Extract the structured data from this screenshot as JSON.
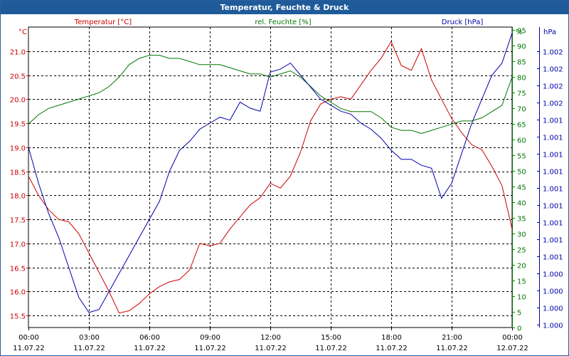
{
  "window": {
    "title": "Temperatur, Feuchte & Druck"
  },
  "colors": {
    "temperature": "#cc0000",
    "humidity": "#007700",
    "pressure": "#0000aa",
    "titlebar": "#1f5b99"
  },
  "chart_data": {
    "type": "line",
    "title": "Temperatur, Feuchte & Druck",
    "grid": true,
    "x_range": [
      0,
      24
    ],
    "x_ticks": [
      {
        "time": "00:00",
        "date": "11.07.22"
      },
      {
        "time": "03:00",
        "date": "11.07.22"
      },
      {
        "time": "06:00",
        "date": "11.07.22"
      },
      {
        "time": "09:00",
        "date": "11.07.22"
      },
      {
        "time": "12:00",
        "date": "11.07.22"
      },
      {
        "time": "15:00",
        "date": "11.07.22"
      },
      {
        "time": "18:00",
        "date": "11.07.22"
      },
      {
        "time": "21:00",
        "date": "11.07.22"
      },
      {
        "time": "00:00",
        "date": "12.07.22"
      }
    ],
    "axes": {
      "temperature": {
        "unit": "°C",
        "ylim": [
          15.25,
          21.5
        ],
        "ticks": [
          "15.5",
          "16.0",
          "16.5",
          "17.0",
          "17.5",
          "18.0",
          "18.5",
          "19.0",
          "19.5",
          "20.0",
          "20.5",
          "21.0"
        ]
      },
      "humidity": {
        "unit": "%",
        "ylim": [
          0,
          96
        ],
        "ticks": [
          "0",
          "5",
          "10",
          "15",
          "20",
          "25",
          "30",
          "35",
          "40",
          "45",
          "50",
          "55",
          "60",
          "65",
          "70",
          "75",
          "80",
          "85",
          "90",
          "95"
        ]
      },
      "pressure": {
        "unit": "hPa",
        "ylim": [
          0,
          1
        ],
        "ticks": [
          "1.000",
          "1.000",
          "1.000",
          "1.000",
          "1.001",
          "1.001",
          "1.001",
          "1.001",
          "1.001",
          "1.001",
          "1.001",
          "1.001",
          "1.001",
          "1.002",
          "1.002",
          "1.002",
          "1.002"
        ]
      }
    },
    "series": [
      {
        "name": "Temperatur [°C]",
        "axis": "temperature",
        "x": [
          0,
          0.5,
          1,
          1.5,
          2,
          2.5,
          3,
          3.5,
          4,
          4.5,
          5,
          5.5,
          6,
          6.5,
          7,
          7.5,
          8,
          8.5,
          9,
          9.5,
          10,
          10.5,
          11,
          11.5,
          12,
          12.5,
          13,
          13.5,
          14,
          14.5,
          15,
          15.5,
          16,
          16.5,
          17,
          17.5,
          18,
          18.5,
          19,
          19.5,
          20,
          20.5,
          21,
          21.5,
          22,
          22.5,
          23,
          23.5,
          24
        ],
        "values": [
          18.4,
          18.0,
          17.7,
          17.5,
          17.45,
          17.2,
          16.8,
          16.4,
          16.0,
          15.55,
          15.6,
          15.75,
          15.95,
          16.1,
          16.2,
          16.25,
          16.45,
          17.0,
          16.95,
          17.0,
          17.3,
          17.55,
          17.8,
          17.95,
          18.25,
          18.15,
          18.4,
          18.9,
          19.55,
          19.9,
          20.0,
          20.05,
          20.0,
          20.3,
          20.6,
          20.85,
          21.2,
          20.7,
          20.6,
          21.05,
          20.4,
          20.0,
          19.6,
          19.3,
          19.05,
          18.95,
          18.6,
          18.2,
          17.3
        ]
      },
      {
        "name": "rel. Feuchte [%]",
        "axis": "humidity",
        "x": [
          0,
          0.5,
          1,
          1.5,
          2,
          2.5,
          3,
          3.5,
          4,
          4.5,
          5,
          5.5,
          6,
          6.5,
          7,
          7.5,
          8,
          8.5,
          9,
          9.5,
          10,
          10.5,
          11,
          11.5,
          12,
          12.5,
          13,
          13.5,
          14,
          14.5,
          15,
          15.5,
          16,
          16.5,
          17,
          17.5,
          18,
          18.5,
          19,
          19.5,
          20,
          20.5,
          21,
          21.5,
          22,
          22.5,
          23,
          23.5,
          24
        ],
        "values": [
          65,
          68,
          70,
          71,
          72,
          73,
          74,
          75,
          77,
          80,
          84,
          86,
          87,
          87,
          86,
          86,
          85,
          84,
          84,
          84,
          83,
          82,
          81,
          81,
          80,
          81,
          82,
          80,
          77,
          74,
          72,
          70,
          69,
          69,
          69,
          67,
          64,
          63,
          63,
          62,
          63,
          64,
          65,
          66,
          66,
          67,
          69,
          71,
          80
        ]
      },
      {
        "name": "Druck [hPa]",
        "axis": "pressure",
        "x": [
          0,
          0.5,
          1,
          1.5,
          2,
          2.5,
          3,
          3.5,
          4,
          4.5,
          5,
          5.5,
          6,
          6.5,
          7,
          7.5,
          8,
          8.5,
          9,
          9.5,
          10,
          10.5,
          11,
          11.5,
          12,
          12.5,
          13,
          13.5,
          14,
          14.5,
          15,
          15.5,
          16,
          16.5,
          17,
          17.5,
          18,
          18.5,
          19,
          19.5,
          20,
          20.5,
          21,
          21.5,
          22,
          22.5,
          23,
          23.5,
          24
        ],
        "values": [
          0.6,
          0.48,
          0.38,
          0.3,
          0.2,
          0.1,
          0.05,
          0.06,
          0.12,
          0.18,
          0.24,
          0.3,
          0.36,
          0.42,
          0.52,
          0.59,
          0.62,
          0.66,
          0.68,
          0.7,
          0.69,
          0.75,
          0.73,
          0.72,
          0.85,
          0.86,
          0.88,
          0.84,
          0.8,
          0.76,
          0.74,
          0.72,
          0.71,
          0.68,
          0.66,
          0.63,
          0.59,
          0.56,
          0.56,
          0.54,
          0.53,
          0.43,
          0.48,
          0.58,
          0.68,
          0.76,
          0.84,
          0.88,
          0.98
        ]
      }
    ]
  }
}
